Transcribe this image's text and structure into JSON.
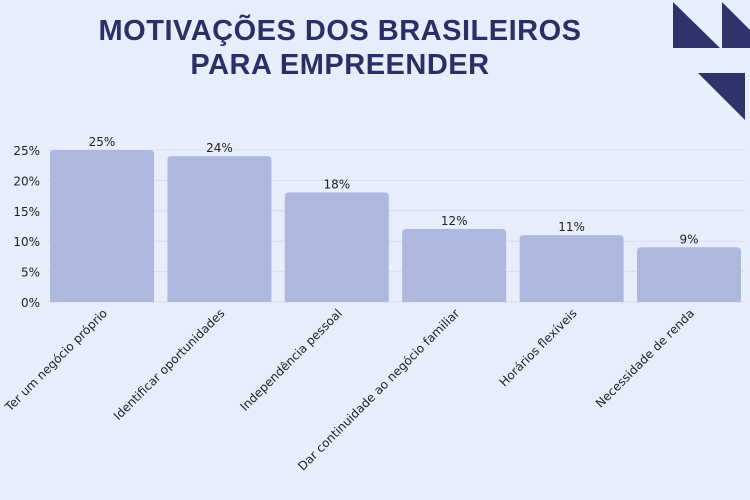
{
  "chart_data": {
    "type": "bar",
    "title_lines": [
      "MOTIVAÇÕES DOS BRASILEIROS",
      "PARA EMPREENDER"
    ],
    "categories": [
      "Ter um negócio próprio",
      "Identificar oportunidades",
      "Independência pessoal",
      "Dar continuidade ao negócio familiar",
      "Horários flexíveis",
      "Necessidade de renda"
    ],
    "values": [
      25,
      24,
      18,
      12,
      11,
      9
    ],
    "data_labels": [
      "25%",
      "24%",
      "18%",
      "12%",
      "11%",
      "9%"
    ],
    "yticks": [
      "0%",
      "5%",
      "10%",
      "15%",
      "20%",
      "25%"
    ],
    "ylim": [
      0,
      25
    ],
    "grid": true,
    "colors": {
      "bar": "#aeb8de",
      "title": "#2a2f66",
      "accent": "#2e336b"
    }
  }
}
